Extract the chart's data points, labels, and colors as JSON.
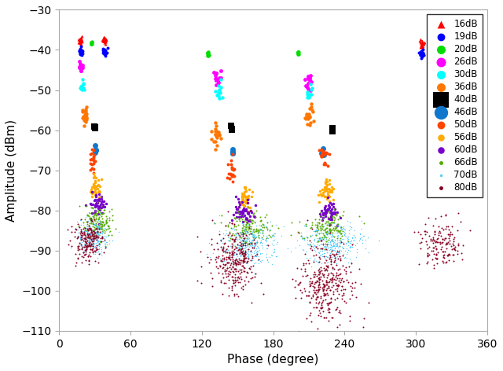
{
  "title": "",
  "xlabel": "Phase (degree)",
  "ylabel": "Amplitude (dBm)",
  "xlim": [
    0,
    360
  ],
  "ylim": [
    -110,
    -30
  ],
  "yticks": [
    -110,
    -100,
    -90,
    -80,
    -70,
    -60,
    -50,
    -40,
    -30
  ],
  "xticks": [
    0,
    60,
    120,
    180,
    240,
    300,
    360
  ],
  "series": [
    {
      "label": "16dB",
      "color": "#ff0000",
      "marker": "^",
      "size": 8,
      "clusters": [
        {
          "phase": 18,
          "amp": -37.5,
          "spread_p": 0.8,
          "spread_a": 0.5,
          "n": 25
        },
        {
          "phase": 38,
          "amp": -37.5,
          "spread_p": 0.8,
          "spread_a": 0.5,
          "n": 25
        },
        {
          "phase": 305,
          "amp": -38.5,
          "spread_p": 0.8,
          "spread_a": 0.5,
          "n": 25
        }
      ]
    },
    {
      "label": "19dB",
      "color": "#0000ff",
      "marker": "o",
      "size": 8,
      "clusters": [
        {
          "phase": 18,
          "amp": -40.5,
          "spread_p": 0.8,
          "spread_a": 0.5,
          "n": 25
        },
        {
          "phase": 38,
          "amp": -40.5,
          "spread_p": 0.8,
          "spread_a": 0.5,
          "n": 25
        },
        {
          "phase": 305,
          "amp": -41,
          "spread_p": 0.8,
          "spread_a": 0.5,
          "n": 25
        }
      ]
    },
    {
      "label": "20dB",
      "color": "#00dd00",
      "marker": "o",
      "size": 10,
      "clusters": [
        {
          "phase": 27,
          "amp": -38.5,
          "spread_p": 0.5,
          "spread_a": 0.4,
          "n": 8
        },
        {
          "phase": 125,
          "amp": -41.0,
          "spread_p": 0.5,
          "spread_a": 0.4,
          "n": 8
        },
        {
          "phase": 201,
          "amp": -40.5,
          "spread_p": 0.5,
          "spread_a": 0.4,
          "n": 8
        }
      ]
    },
    {
      "label": "26dB",
      "color": "#ff00ff",
      "marker": "o",
      "size": 12,
      "clusters": [
        {
          "phase": 18,
          "amp": -44.5,
          "spread_p": 1.0,
          "spread_a": 0.8,
          "n": 15
        },
        {
          "phase": 133,
          "amp": -47.0,
          "spread_p": 1.5,
          "spread_a": 1.0,
          "n": 15
        },
        {
          "phase": 209,
          "amp": -48.0,
          "spread_p": 1.5,
          "spread_a": 1.0,
          "n": 15
        }
      ]
    },
    {
      "label": "30dB",
      "color": "#00ffff",
      "marker": "o",
      "size": 10,
      "clusters": [
        {
          "phase": 20,
          "amp": -49.0,
          "spread_p": 1.0,
          "spread_a": 0.8,
          "n": 12
        },
        {
          "phase": 135,
          "amp": -50.5,
          "spread_p": 1.5,
          "spread_a": 1.0,
          "n": 12
        },
        {
          "phase": 210,
          "amp": -50.5,
          "spread_p": 1.5,
          "spread_a": 1.0,
          "n": 12
        }
      ]
    },
    {
      "label": "36dB",
      "color": "#ff7700",
      "marker": "o",
      "size": 10,
      "clusters": [
        {
          "phase": 22,
          "amp": -56.0,
          "spread_p": 1.5,
          "spread_a": 1.2,
          "n": 20
        },
        {
          "phase": 132,
          "amp": -61.5,
          "spread_p": 2.0,
          "spread_a": 1.5,
          "n": 20
        },
        {
          "phase": 210,
          "amp": -57.0,
          "spread_p": 2.0,
          "spread_a": 1.5,
          "n": 20
        }
      ]
    },
    {
      "label": "40dB",
      "color": "#000000",
      "marker": "s",
      "size": 30,
      "clusters": [
        {
          "phase": 30,
          "amp": -59.0,
          "spread_p": 0.3,
          "spread_a": 0.3,
          "n": 3
        },
        {
          "phase": 145,
          "amp": -59.5,
          "spread_p": 0.3,
          "spread_a": 0.3,
          "n": 3
        },
        {
          "phase": 230,
          "amp": -59.5,
          "spread_p": 0.3,
          "spread_a": 0.3,
          "n": 3
        }
      ]
    },
    {
      "label": "46dB",
      "color": "#1177cc",
      "marker": "o",
      "size": 25,
      "clusters": [
        {
          "phase": 30,
          "amp": -65.0,
          "spread_p": 0.5,
          "spread_a": 0.5,
          "n": 5
        },
        {
          "phase": 146,
          "amp": -65.5,
          "spread_p": 0.5,
          "spread_a": 0.5,
          "n": 5
        },
        {
          "phase": 222,
          "amp": -65.5,
          "spread_p": 0.5,
          "spread_a": 0.5,
          "n": 5
        }
      ]
    },
    {
      "label": "50dB",
      "color": "#ff4400",
      "marker": "o",
      "size": 8,
      "clusters": [
        {
          "phase": 28,
          "amp": -67.5,
          "spread_p": 1.5,
          "spread_a": 1.5,
          "n": 20
        },
        {
          "phase": 145,
          "amp": -70.0,
          "spread_p": 2.0,
          "spread_a": 1.5,
          "n": 20
        },
        {
          "phase": 222,
          "amp": -66.5,
          "spread_p": 2.0,
          "spread_a": 1.5,
          "n": 20
        }
      ]
    },
    {
      "label": "56dB",
      "color": "#ffaa00",
      "marker": "o",
      "size": 6,
      "clusters": [
        {
          "phase": 30,
          "amp": -74.5,
          "spread_p": 2.5,
          "spread_a": 1.5,
          "n": 40
        },
        {
          "phase": 155,
          "amp": -77.0,
          "spread_p": 3.0,
          "spread_a": 1.5,
          "n": 40
        },
        {
          "phase": 225,
          "amp": -75.5,
          "spread_p": 3.0,
          "spread_a": 1.5,
          "n": 40
        }
      ]
    },
    {
      "label": "60dB",
      "color": "#7700cc",
      "marker": "o",
      "size": 6,
      "clusters": [
        {
          "phase": 32,
          "amp": -79.0,
          "spread_p": 3.5,
          "spread_a": 1.5,
          "n": 50
        },
        {
          "phase": 155,
          "amp": -80.5,
          "spread_p": 4.0,
          "spread_a": 1.5,
          "n": 50
        },
        {
          "phase": 227,
          "amp": -80.5,
          "spread_p": 4.0,
          "spread_a": 1.5,
          "n": 50
        }
      ]
    },
    {
      "label": "66dB",
      "color": "#55aa00",
      "marker": "o",
      "size": 2,
      "clusters": [
        {
          "phase": 32,
          "amp": -83.0,
          "spread_p": 6.0,
          "spread_a": 2.0,
          "n": 150
        },
        {
          "phase": 158,
          "amp": -84.5,
          "spread_p": 10.0,
          "spread_a": 2.0,
          "n": 150
        },
        {
          "phase": 225,
          "amp": -84.5,
          "spread_p": 10.0,
          "spread_a": 2.0,
          "n": 150
        }
      ]
    },
    {
      "label": "70dB",
      "color": "#55ccff",
      "marker": "o",
      "size": 1,
      "clusters": [
        {
          "phase": 28,
          "amp": -86.5,
          "spread_p": 7.0,
          "spread_a": 2.0,
          "n": 250
        },
        {
          "phase": 160,
          "amp": -88.5,
          "spread_p": 12.0,
          "spread_a": 2.5,
          "n": 350
        },
        {
          "phase": 230,
          "amp": -88.0,
          "spread_p": 12.0,
          "spread_a": 2.5,
          "n": 350
        }
      ]
    },
    {
      "label": "80dB",
      "color": "#880022",
      "marker": "o",
      "size": 2,
      "clusters": [
        {
          "phase": 25,
          "amp": -87.5,
          "spread_p": 6.0,
          "spread_a": 2.5,
          "n": 200
        },
        {
          "phase": 148,
          "amp": -92.5,
          "spread_p": 10.0,
          "spread_a": 4.0,
          "n": 300
        },
        {
          "phase": 225,
          "amp": -98.0,
          "spread_p": 12.0,
          "spread_a": 5.0,
          "n": 350
        },
        {
          "phase": 322,
          "amp": -88.5,
          "spread_p": 8.0,
          "spread_a": 3.0,
          "n": 150
        }
      ]
    }
  ],
  "figsize": [
    6.4,
    4.72
  ],
  "dpi": 100
}
